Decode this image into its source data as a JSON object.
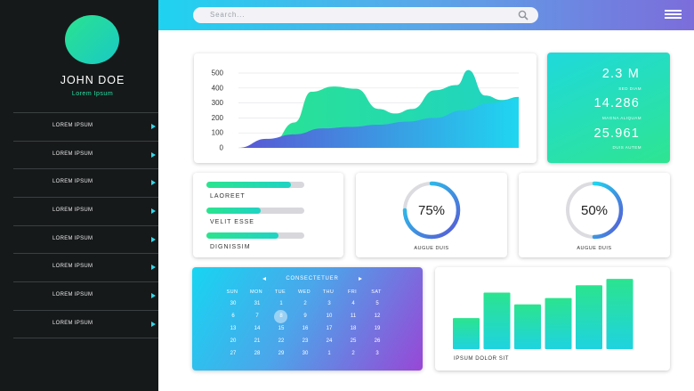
{
  "sidebar": {
    "user_name": "JOHN DOE",
    "user_subtitle": "Lorem Ipsum",
    "items": [
      {
        "label": "LOREM IPSUM"
      },
      {
        "label": "LOREM IPSUM"
      },
      {
        "label": "LOREM IPSUM"
      },
      {
        "label": "LOREM IPSUM"
      },
      {
        "label": "LOREM IPSUM"
      },
      {
        "label": "LOREM IPSUM"
      },
      {
        "label": "LOREM IPSUM"
      },
      {
        "label": "LOREM IPSUM"
      }
    ],
    "accent_color": "#27e2a6"
  },
  "topbar": {
    "search_placeholder": "Search...",
    "search_icon": "search-icon",
    "menu_icon": "hamburger-menu-icon"
  },
  "area_chart": {
    "chart_data": {
      "type": "area",
      "y_ticks": [
        "500",
        "400",
        "300",
        "200",
        "100",
        "0"
      ],
      "ylim": [
        0,
        500
      ],
      "series": [
        {
          "color": "#2be48e",
          "points": [
            [
              0,
              0
            ],
            [
              0.12,
              35
            ],
            [
              0.2,
              170
            ],
            [
              0.26,
              375
            ],
            [
              0.34,
              410
            ],
            [
              0.42,
              395
            ],
            [
              0.5,
              260
            ],
            [
              0.56,
              230
            ],
            [
              0.62,
              260
            ],
            [
              0.7,
              385
            ],
            [
              0.78,
              420
            ],
            [
              0.82,
              520
            ],
            [
              0.88,
              350
            ],
            [
              0.94,
              320
            ],
            [
              1,
              340
            ]
          ]
        },
        {
          "color": "#3f6fd9",
          "points": [
            [
              0,
              0
            ],
            [
              0.1,
              60
            ],
            [
              0.2,
              90
            ],
            [
              0.3,
              130
            ],
            [
              0.4,
              140
            ],
            [
              0.5,
              155
            ],
            [
              0.6,
              175
            ],
            [
              0.7,
              200
            ],
            [
              0.8,
              250
            ],
            [
              0.9,
              300
            ],
            [
              1,
              330
            ]
          ]
        }
      ]
    }
  },
  "stats": [
    {
      "value": "2.3 M",
      "label": "SED DIAM"
    },
    {
      "value": "14.286",
      "label": "MAGNA ALIQUAM"
    },
    {
      "value": "25.961",
      "label": "DUIS AUTEM"
    }
  ],
  "progress_bars": [
    {
      "label": "LAOREET",
      "value": 0.86
    },
    {
      "label": "VELIT ESSE",
      "value": 0.55
    },
    {
      "label": "DIGNISSIM",
      "value": 0.74
    }
  ],
  "donuts": [
    {
      "value_text": "75%",
      "value": 0.75,
      "label": "AUGUE DUIS"
    },
    {
      "value_text": "50%",
      "value": 0.5,
      "label": "AUGUE DUIS"
    }
  ],
  "calendar": {
    "title": "CONSECTETUER",
    "weekdays": [
      "SUN",
      "MON",
      "TUE",
      "WED",
      "THU",
      "FRI",
      "SAT"
    ],
    "weeks": [
      [
        "30",
        "31",
        "1",
        "2",
        "3",
        "4",
        "5"
      ],
      [
        "6",
        "7",
        "8",
        "9",
        "10",
        "11",
        "12"
      ],
      [
        "13",
        "14",
        "15",
        "16",
        "17",
        "18",
        "19"
      ],
      [
        "20",
        "21",
        "22",
        "23",
        "24",
        "25",
        "26"
      ],
      [
        "27",
        "28",
        "29",
        "30",
        "1",
        "2",
        "3"
      ]
    ],
    "selected": "8"
  },
  "bar_chart": {
    "label": "IPSUM DOLOR SIT",
    "chart_data": {
      "type": "bar",
      "values": [
        34,
        62,
        49,
        56,
        70,
        77
      ],
      "ylim": [
        0,
        80
      ],
      "colors": [
        "#2be48e",
        "#1fd3e0"
      ]
    }
  }
}
